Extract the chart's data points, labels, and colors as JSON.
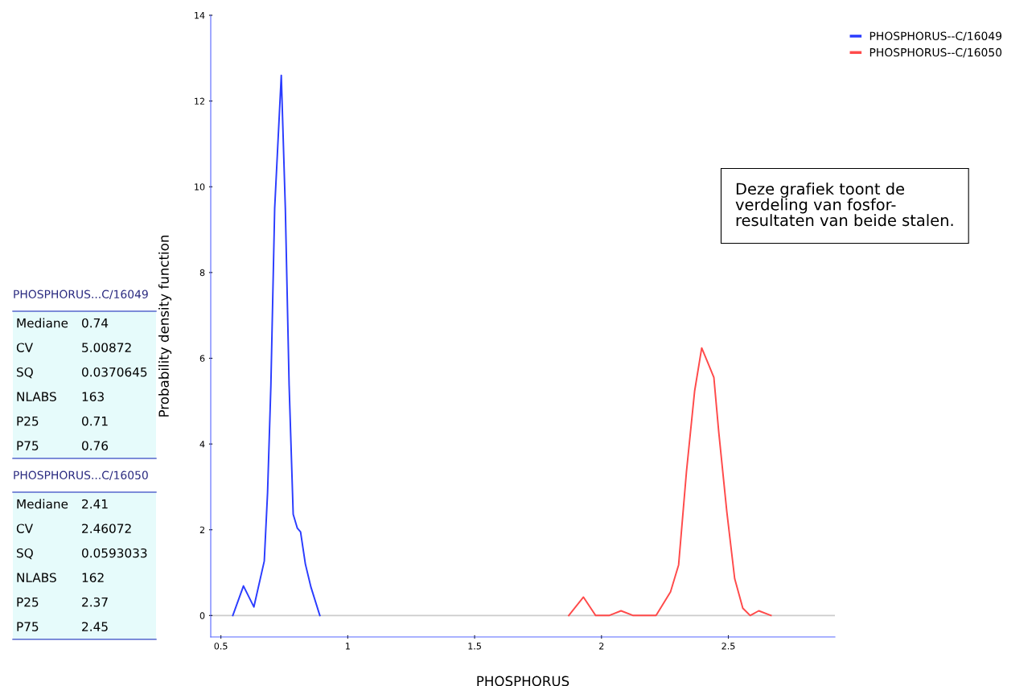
{
  "chart_data": {
    "type": "line",
    "xlabel": "PHOSPHORUS",
    "ylabel": "Probability density function",
    "series": [
      {
        "name": "PHOSPHORUS--C/16049",
        "color": "#2a3cff",
        "x": [
          0.547,
          0.589,
          0.63,
          0.671,
          0.684,
          0.697,
          0.712,
          0.738,
          0.754,
          0.769,
          0.785,
          0.801,
          0.814,
          0.833,
          0.855,
          0.89
        ],
        "values": [
          0,
          0.69,
          0.2,
          1.27,
          2.87,
          5.36,
          9.5,
          12.6,
          9.5,
          5.36,
          2.36,
          2.04,
          1.95,
          1.2,
          0.66,
          0
        ]
      },
      {
        "name": "PHOSPHORUS--C/16050",
        "color": "#ff4a4a",
        "x": [
          1.871,
          1.929,
          1.977,
          2.03,
          2.077,
          2.125,
          2.215,
          2.272,
          2.304,
          2.335,
          2.367,
          2.395,
          2.421,
          2.443,
          2.462,
          2.494,
          2.525,
          2.557,
          2.586,
          2.62,
          2.668
        ],
        "values": [
          0,
          0.43,
          0,
          0,
          0.11,
          0,
          0,
          0.55,
          1.18,
          3.36,
          5.23,
          6.24,
          5.87,
          5.55,
          4.29,
          2.42,
          0.86,
          0.17,
          0,
          0.11,
          0
        ]
      }
    ],
    "xlim": [
      0.46,
      2.92
    ],
    "xticks": [
      0.5,
      1,
      1.5,
      2,
      2.5
    ],
    "ylim": [
      -0.5,
      14
    ],
    "yticks": [
      0,
      2,
      4,
      6,
      8,
      10,
      12,
      14
    ],
    "ref_lines": [
      {
        "axis": "y",
        "value": 0,
        "color": "#cccccc"
      }
    ],
    "grid": false,
    "legend": "top right",
    "marker": "none",
    "line_style": "solid",
    "annotations": [
      "PHOSPHORUS...C/16049",
      "Mediane",
      "0.74",
      "CV",
      "5.00872",
      "SQ",
      "0.0370645",
      "NLABS",
      "163",
      "P25",
      "0.71",
      "P75",
      "0.76",
      "PHOSPHORUS...C/16050",
      "Mediane",
      "2.41",
      "CV",
      "2.46072",
      "SQ",
      "0.0593033",
      "NLABS",
      "162",
      "P25",
      "2.37",
      "P75",
      "2.45",
      "Deze grafiek toont de\nverdeling van fosfor-\nresultaten van beide stalen."
    ]
  }
}
